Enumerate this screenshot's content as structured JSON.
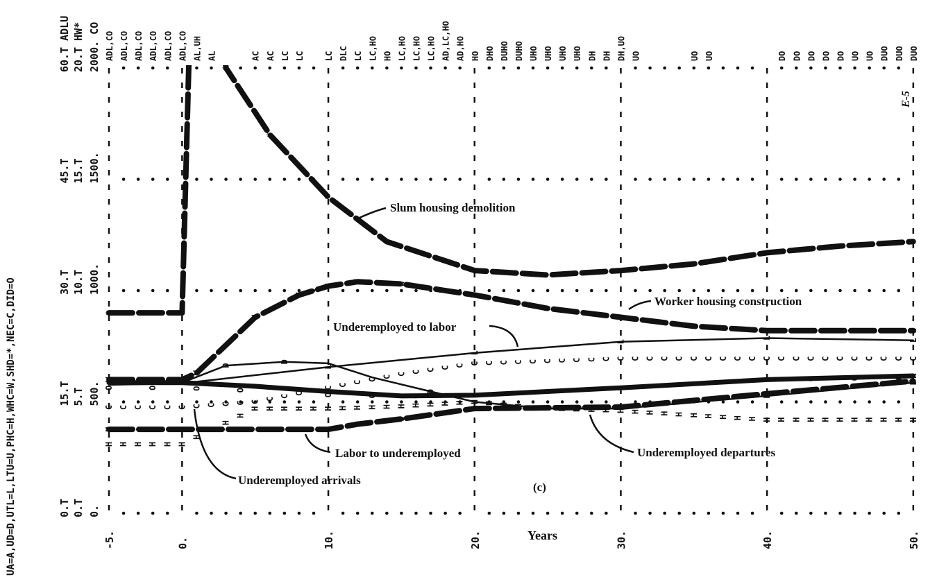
{
  "chart_data": {
    "type": "line",
    "title": "",
    "panel_label": "(c)",
    "page_label": "E-5",
    "xlabel": "Years",
    "xlim": [
      -5,
      50
    ],
    "x_ticks": [
      {
        "value": -5,
        "label": "-5."
      },
      {
        "value": 0,
        "label": "0."
      },
      {
        "value": 10,
        "label": "10."
      },
      {
        "value": 20,
        "label": "20."
      },
      {
        "value": 30,
        "label": "30."
      },
      {
        "value": 40,
        "label": "40."
      },
      {
        "value": 50,
        "label": "50."
      }
    ],
    "grid": true,
    "legend_text": "UA=A,UD=D,UTL=L,LTU=U,PHC=H,WHC=W,SHD=*,NEC=C,DID=O",
    "y_scales": [
      {
        "id": "ADLU",
        "symbols": "ADLU",
        "max": 60,
        "tick_labels": [
          "0.T",
          "15.T",
          "30.T",
          "45.T",
          "60.T"
        ]
      },
      {
        "id": "HW*",
        "symbols": "HW*",
        "max": 20,
        "tick_labels": [
          "0.T",
          "5.T",
          "10.T",
          "15.T",
          "20.T"
        ]
      },
      {
        "id": "CO",
        "symbols": "CO",
        "max": 2000,
        "tick_labels": [
          "0.",
          "500.",
          "1000.",
          "1500.",
          "2000."
        ]
      }
    ],
    "series": [
      {
        "symbol": "*",
        "scale": "HW*",
        "style": "thick-dash",
        "x": [
          -5,
          0,
          0.7,
          2,
          3,
          6,
          10,
          14,
          20,
          25,
          30,
          35,
          40,
          45,
          50
        ],
        "values": [
          9.0,
          9.0,
          26,
          26,
          20.0,
          17.0,
          14.2,
          12.2,
          10.9,
          10.7,
          10.9,
          11.2,
          11.7,
          12.0,
          12.2
        ]
      },
      {
        "symbol": "W",
        "scale": "HW*",
        "style": "thick-dash",
        "x": [
          -5,
          0,
          1,
          5,
          8,
          10,
          12,
          15,
          20,
          25,
          30,
          35,
          40,
          45,
          50
        ],
        "values": [
          6.0,
          6.0,
          6.3,
          8.8,
          9.8,
          10.2,
          10.4,
          10.3,
          9.8,
          9.2,
          8.8,
          8.4,
          8.2,
          8.2,
          8.2
        ]
      },
      {
        "symbol": "L",
        "scale": "ADLU",
        "style": "thin",
        "x": [
          -5,
          0,
          10,
          20,
          30,
          40,
          50
        ],
        "values": [
          17.3,
          17.5,
          19.7,
          21.6,
          23.1,
          23.6,
          23.3
        ]
      },
      {
        "symbol": "A",
        "scale": "ADLU",
        "style": "thick",
        "x": [
          -5,
          0,
          5,
          10,
          15,
          20,
          30,
          40,
          50
        ],
        "values": [
          17.6,
          17.6,
          17.1,
          16.4,
          15.8,
          15.9,
          16.9,
          18.0,
          18.5
        ]
      },
      {
        "symbol": "D",
        "scale": "ADLU",
        "style": "thin",
        "x": [
          -5,
          0,
          3,
          7,
          10,
          13,
          17,
          20,
          25,
          30,
          40,
          50
        ],
        "values": [
          17.6,
          17.6,
          19.9,
          20.4,
          20.2,
          18.3,
          16.4,
          15.0,
          14.1,
          14.1,
          15.8,
          17.6
        ]
      },
      {
        "symbol": "U",
        "scale": "ADLU",
        "style": "thick-dash",
        "x": [
          -5,
          0,
          10,
          12,
          15,
          20,
          30,
          40,
          50
        ],
        "values": [
          11.3,
          11.3,
          11.3,
          12.0,
          12.7,
          14.1,
          14.3,
          16.1,
          17.8
        ]
      },
      {
        "symbol": "H",
        "scale": "HW*",
        "style": "letters",
        "x": [
          -5,
          0,
          5,
          10,
          15,
          20,
          25,
          30,
          35,
          40,
          50
        ],
        "values": [
          3.1,
          3.1,
          4.7,
          4.7,
          4.8,
          5.0,
          4.7,
          4.6,
          4.4,
          4.2,
          4.2
        ]
      },
      {
        "symbol": "C",
        "scale": "CO",
        "style": "letters",
        "x": [
          -5,
          0,
          5,
          10,
          15,
          20,
          30,
          50
        ],
        "values": [
          475,
          475,
          500,
          563,
          625,
          672,
          694,
          694
        ]
      },
      {
        "symbol": "O",
        "scale": "CO",
        "style": "letters-sparse",
        "x": [
          -5,
          0,
          5,
          10,
          15,
          20,
          30,
          40,
          50
        ],
        "values": [
          563,
          563,
          550,
          531,
          525,
          531,
          563,
          600,
          609
        ]
      }
    ],
    "annotations": [
      {
        "text": "Slum housing demolition",
        "series": "*"
      },
      {
        "text": "Worker housing construction",
        "series": "W"
      },
      {
        "text": "Underemployed to labor",
        "series": "L"
      },
      {
        "text": "Labor to underemployed",
        "series": "U"
      },
      {
        "text": "Underemployed departures",
        "series": "D"
      },
      {
        "text": "Underemployed arrivals",
        "series": "A"
      }
    ],
    "overflow_labels": [
      {
        "year": -5,
        "text": "ADL,CO"
      },
      {
        "year": -4,
        "text": "ADL,CO"
      },
      {
        "year": -3,
        "text": "ADL,CO"
      },
      {
        "year": -2,
        "text": "ADL,CO"
      },
      {
        "year": -1,
        "text": "ADL,CO"
      },
      {
        "year": 0,
        "text": "ADL,CO"
      },
      {
        "year": 1,
        "text": "AL,UH"
      },
      {
        "year": 2,
        "text": "AL"
      },
      {
        "year": 5,
        "text": "AC"
      },
      {
        "year": 6,
        "text": "AC"
      },
      {
        "year": 7,
        "text": "LC"
      },
      {
        "year": 8,
        "text": "LC"
      },
      {
        "year": 10,
        "text": "LC"
      },
      {
        "year": 11,
        "text": "DLC"
      },
      {
        "year": 12,
        "text": "LC"
      },
      {
        "year": 13,
        "text": "LC,HO"
      },
      {
        "year": 14,
        "text": "HO"
      },
      {
        "year": 15,
        "text": "LC,HO"
      },
      {
        "year": 16,
        "text": "LC,HO"
      },
      {
        "year": 17,
        "text": "LC,HO"
      },
      {
        "year": 18,
        "text": "AD,LC,HO"
      },
      {
        "year": 19,
        "text": "AD,HO"
      },
      {
        "year": 20,
        "text": "HO"
      },
      {
        "year": 21,
        "text": "DHO"
      },
      {
        "year": 22,
        "text": "DUHO"
      },
      {
        "year": 23,
        "text": "DUHO"
      },
      {
        "year": 24,
        "text": "UHO"
      },
      {
        "year": 25,
        "text": "UHO"
      },
      {
        "year": 26,
        "text": "UHO"
      },
      {
        "year": 27,
        "text": "UHO"
      },
      {
        "year": 28,
        "text": "DH"
      },
      {
        "year": 29,
        "text": "DH"
      },
      {
        "year": 30,
        "text": "DH,UO"
      },
      {
        "year": 31,
        "text": "UO"
      },
      {
        "year": 35,
        "text": "UO"
      },
      {
        "year": 36,
        "text": "UO"
      },
      {
        "year": 41,
        "text": "DO"
      },
      {
        "year": 42,
        "text": "DO"
      },
      {
        "year": 43,
        "text": "DO"
      },
      {
        "year": 44,
        "text": "DO"
      },
      {
        "year": 45,
        "text": "DO"
      },
      {
        "year": 46,
        "text": "UO"
      },
      {
        "year": 47,
        "text": "UO"
      },
      {
        "year": 48,
        "text": "DUO"
      },
      {
        "year": 49,
        "text": "DUO"
      },
      {
        "year": 50,
        "text": "DUO"
      }
    ],
    "colors": {
      "ink": "#111111",
      "background": "#ffffff"
    }
  }
}
